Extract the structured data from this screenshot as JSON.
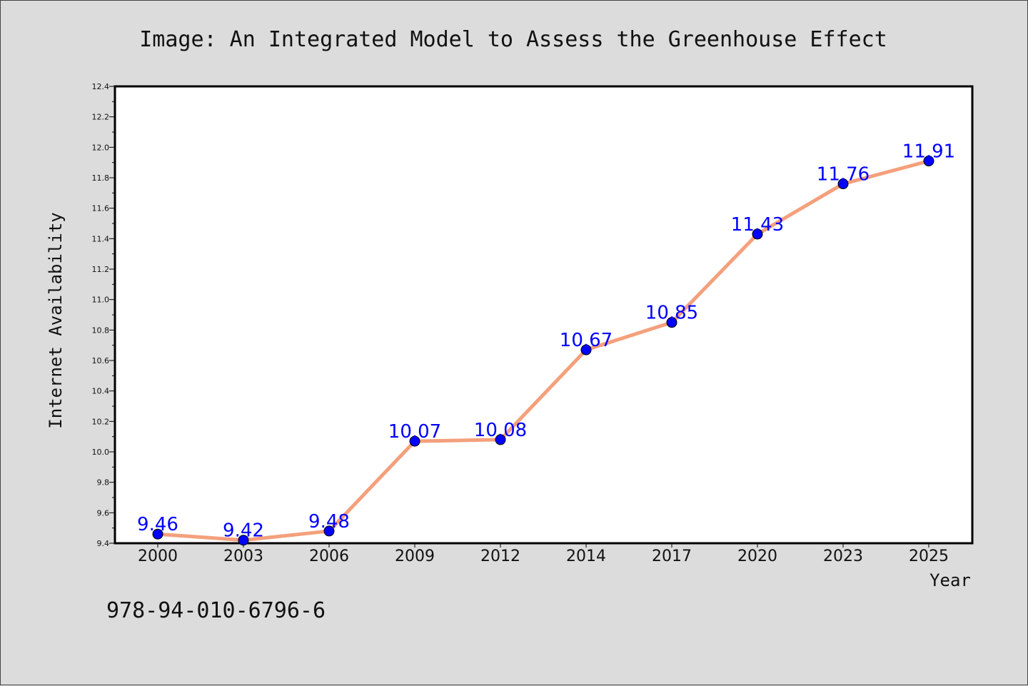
{
  "chart_data": {
    "type": "line",
    "title": "Image: An Integrated Model to Assess the Greenhouse Effect",
    "xlabel": "Year",
    "ylabel": "Internet Availability",
    "categories": [
      "2000",
      "2003",
      "2006",
      "2009",
      "2012",
      "2014",
      "2017",
      "2020",
      "2023",
      "2025"
    ],
    "series": [
      {
        "values": [
          9.46,
          9.42,
          9.48,
          10.07,
          10.08,
          10.67,
          10.85,
          11.43,
          11.76,
          11.91
        ]
      }
    ],
    "data_labels": [
      "9.46",
      "9.42",
      "9.48",
      "10.07",
      "10.08",
      "10.67",
      "10.85",
      "11.43",
      "11.76",
      "11.91"
    ],
    "ylim": [
      9.4,
      12.4
    ],
    "yticks": [
      "9.4",
      "9.6",
      "9.8",
      "10.0",
      "10.2",
      "10.4",
      "10.6",
      "10.8",
      "11.0",
      "11.2",
      "11.4",
      "11.6",
      "11.8",
      "12.0",
      "12.2",
      "12.4"
    ],
    "grid": false,
    "legend": "none",
    "colors": {
      "line": "#f4a07c",
      "marker": "#0000ff",
      "data_label": "#0000ff",
      "background": "#dcdcdc",
      "plot_background": "#ffffff"
    }
  },
  "footer": {
    "text": "978-94-010-6796-6"
  }
}
